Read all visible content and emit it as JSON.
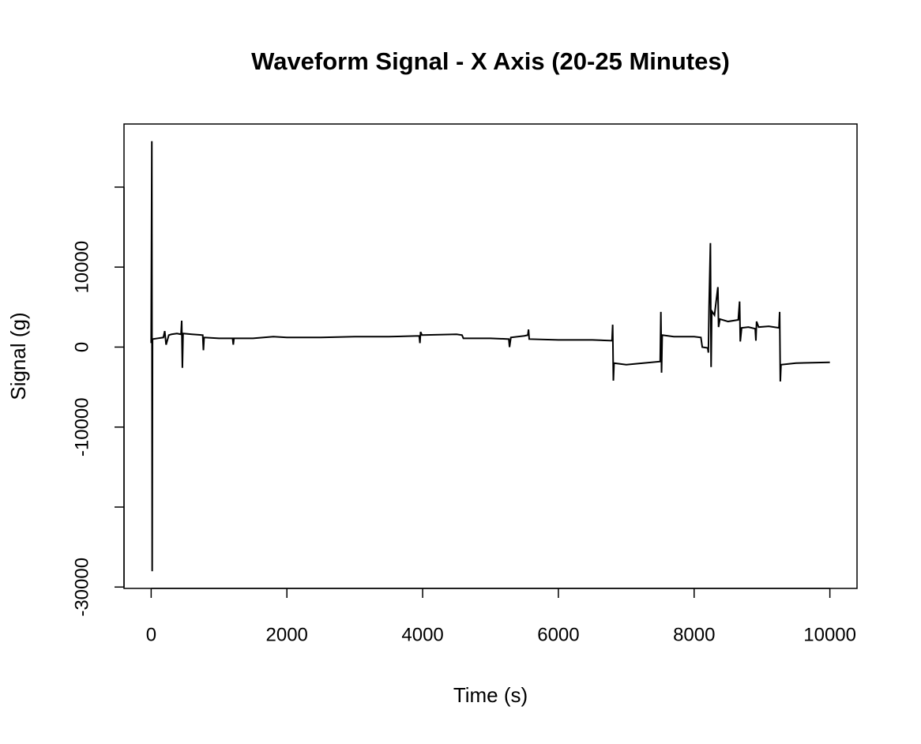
{
  "chart_data": {
    "type": "line",
    "title": "Waveform Signal - X Axis (20-25 Minutes)",
    "x_label": "Time (s)",
    "y_label": "Signal (g)",
    "color": "#000000",
    "x": [
      0,
      10,
      15,
      20,
      100,
      180,
      200,
      220,
      260,
      300,
      380,
      440,
      450,
      460,
      470,
      600,
      760,
      770,
      780,
      1000,
      1200,
      1210,
      1220,
      1500,
      1800,
      2000,
      2500,
      3000,
      3500,
      3950,
      3960,
      3970,
      3990,
      4500,
      4580,
      4600,
      5000,
      5270,
      5280,
      5300,
      5500,
      5550,
      5560,
      5570,
      6000,
      6500,
      6790,
      6800,
      6810,
      6820,
      7000,
      7500,
      7510,
      7520,
      7530,
      7700,
      8000,
      8100,
      8120,
      8200,
      8210,
      8220,
      8240,
      8250,
      8260,
      8300,
      8350,
      8360,
      8380,
      8500,
      8650,
      8670,
      8680,
      8700,
      8800,
      8900,
      8910,
      8920,
      8950,
      9100,
      9250,
      9260,
      9270,
      9280,
      9500,
      10000
    ],
    "values": [
      500,
      25740,
      -28020,
      1000,
      1100,
      1200,
      2000,
      300,
      1500,
      1600,
      1700,
      1600,
      3300,
      -2600,
      1700,
      1600,
      1500,
      -400,
      1200,
      1100,
      1100,
      300,
      1100,
      1100,
      1300,
      1200,
      1200,
      1300,
      1300,
      1400,
      500,
      1900,
      1500,
      1600,
      1500,
      1100,
      1100,
      1000,
      0,
      1200,
      1400,
      1500,
      2200,
      1000,
      900,
      900,
      800,
      2800,
      -4200,
      -2000,
      -2200,
      -1800,
      4400,
      -3200,
      1500,
      1300,
      1300,
      1200,
      0,
      -100,
      -700,
      5000,
      13000,
      -2500,
      4500,
      4000,
      7500,
      2500,
      3500,
      3200,
      3400,
      5700,
      700,
      2400,
      2500,
      2300,
      800,
      3200,
      2500,
      2600,
      2400,
      4400,
      -4300,
      -2200,
      -2000,
      -1900
    ],
    "xlim": [
      -400,
      10400
    ],
    "xticks": [
      0,
      2000,
      4000,
      6000,
      8000,
      10000
    ],
    "ylim": [
      -30170,
      27890
    ],
    "yticks": [
      -30000,
      {
        "value": -20000,
        "label": null
      },
      -10000,
      0,
      10000,
      {
        "value": 20000,
        "label": null
      }
    ]
  }
}
